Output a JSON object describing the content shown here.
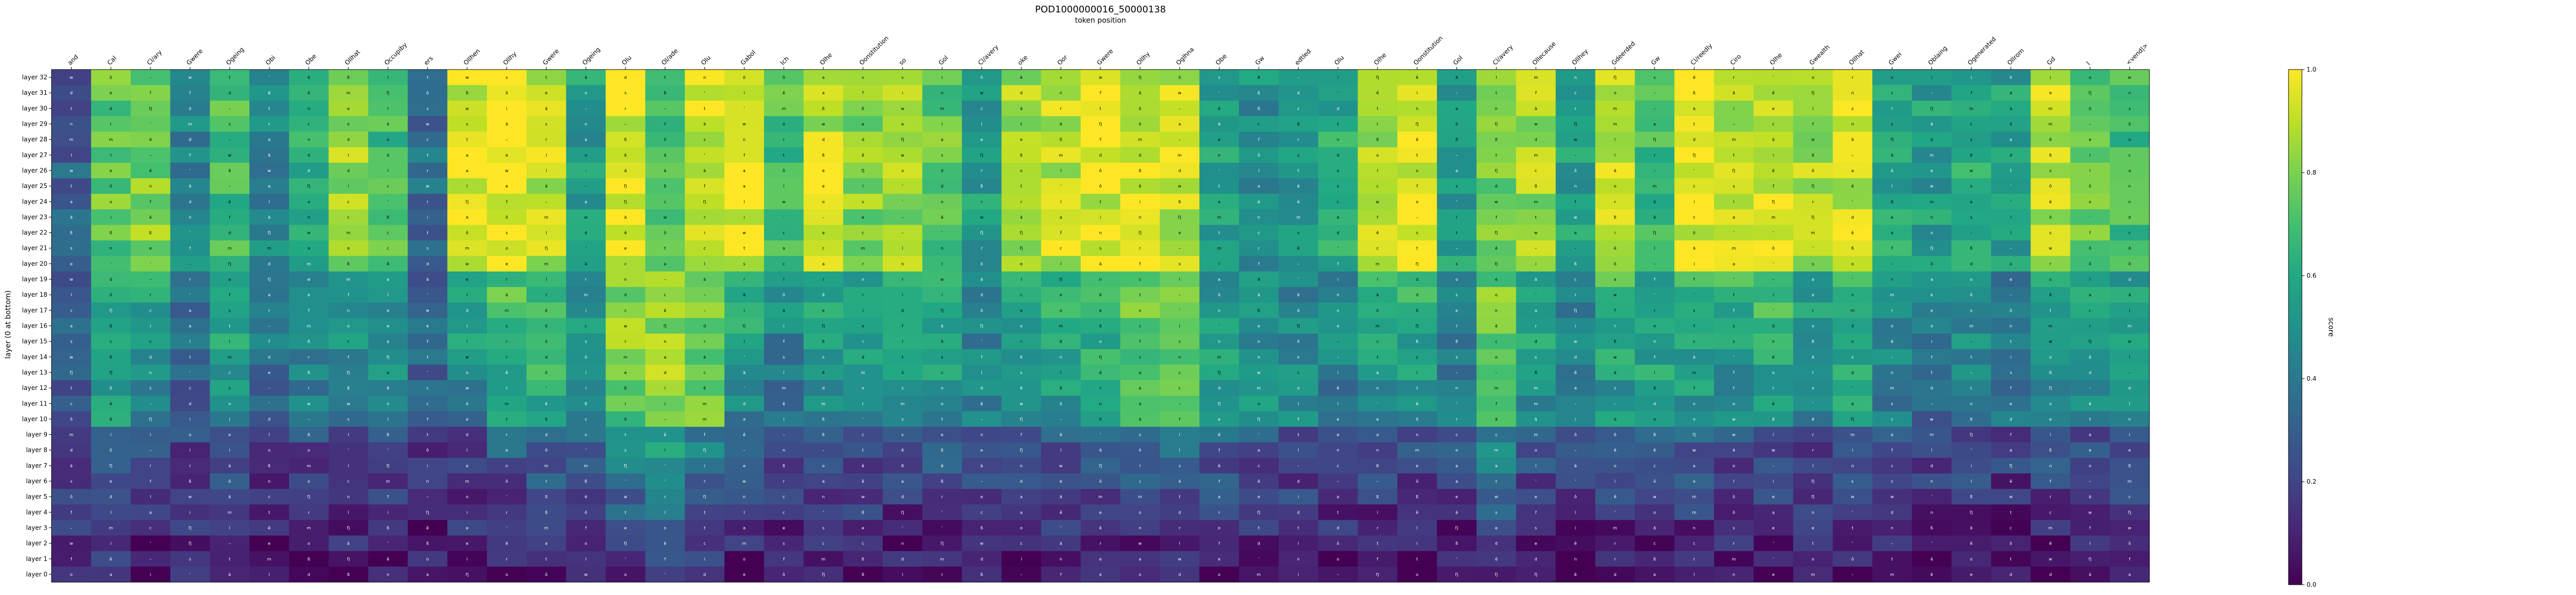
{
  "chart_data": {
    "type": "heatmap",
    "title": "POD1000000016_50000138",
    "subtitle": "token position",
    "ylabel": "layer (0 at bottom)",
    "colorbar_label": "score",
    "colorbar_ticks": [
      "0.0",
      "0.2",
      "0.4",
      "0.6",
      "0.8",
      "1.0"
    ],
    "colormap": "viridis",
    "zlim": [
      0,
      1
    ],
    "x_tokens": [
      "and",
      "Cal",
      "Cl/ary",
      "Gwere",
      "Ogeing",
      "Obi",
      "Obe",
      "Ollhat",
      "Occupiby",
      "ers",
      "Ollhen",
      "Ollhy",
      "Gwere",
      "Ogeing",
      "Olu",
      "Ol/ade",
      "Olu",
      "Gabol",
      "Ich",
      "Olhe",
      "Oonstitution",
      "so",
      "Gol",
      "Cl/avery",
      "oke",
      "Oor",
      "Gwere",
      "Ollhy",
      "Oglhna",
      "Obe",
      "Gw",
      "edtled",
      "Olu",
      "Olhe",
      "Oonstitution",
      "Gol",
      "Cl/avery",
      "Ollecause",
      "Ollhey",
      "Gdeerded",
      "Gw",
      "Cl/reedly",
      "Ciro",
      "Olhe",
      "Gwealth",
      "Ollhat",
      "Gwei",
      "Oblaing",
      "Ogenerated",
      "Ollrom",
      "Gd",
      "l",
      "<vend|>"
    ],
    "y_layers": [
      "layer 32",
      "layer 31",
      "layer 30",
      "layer 29",
      "layer 28",
      "layer 27",
      "layer 26",
      "layer 25",
      "layer 24",
      "layer 23",
      "layer 22",
      "layer 21",
      "layer 20",
      "layer 19",
      "layer 18",
      "layer 17",
      "layer 16",
      "layer 15",
      "layer 14",
      "layer 13",
      "layer 12",
      "layer 11",
      "layer 10",
      "layer 9",
      "layer 8",
      "layer 7",
      "layer 6",
      "layer 5",
      "layer 4",
      "layer 3",
      "layer 2",
      "layer 1",
      "layer 0"
    ],
    "cell_glyphs": [
      "e",
      "t",
      "w",
      "s",
      "a",
      "i",
      "n",
      "o",
      "ô",
      "ß",
      "ä",
      "ě",
      "r",
      "l",
      "f",
      "m",
      "c",
      "d",
      "'",
      "–",
      "Ŋ"
    ],
    "column_profiles": [
      {
        "high": 0.3,
        "mid": 0.25,
        "low": 0.1
      },
      {
        "high": 0.75,
        "mid": 0.55,
        "low": 0.1
      },
      {
        "high": 0.8,
        "mid": 0.4,
        "low": 0.05
      },
      {
        "high": 0.45,
        "mid": 0.3,
        "low": 0.08
      },
      {
        "high": 0.7,
        "mid": 0.5,
        "low": 0.05
      },
      {
        "high": 0.45,
        "mid": 0.35,
        "low": 0.05
      },
      {
        "high": 0.6,
        "mid": 0.4,
        "low": 0.05
      },
      {
        "high": 0.85,
        "mid": 0.4,
        "low": 0.05
      },
      {
        "high": 0.7,
        "mid": 0.45,
        "low": 0.05
      },
      {
        "high": 0.35,
        "mid": 0.3,
        "low": 0.05
      },
      {
        "high": 0.95,
        "mid": 0.4,
        "low": 0.05
      },
      {
        "high": 0.95,
        "mid": 0.55,
        "low": 0.05
      },
      {
        "high": 0.9,
        "mid": 0.6,
        "low": 0.05
      },
      {
        "high": 0.55,
        "mid": 0.5,
        "low": 0.05
      },
      {
        "high": 0.95,
        "mid": 0.75,
        "low": 0.15
      },
      {
        "high": 0.7,
        "mid": 0.85,
        "low": 0.25
      },
      {
        "high": 0.9,
        "mid": 0.75,
        "low": 0.1
      },
      {
        "high": 0.95,
        "mid": 0.45,
        "low": 0.05
      },
      {
        "high": 0.7,
        "mid": 0.35,
        "low": 0.05
      },
      {
        "high": 0.9,
        "mid": 0.45,
        "low": 0.1
      },
      {
        "high": 0.8,
        "mid": 0.45,
        "low": 0.05
      },
      {
        "high": 0.85,
        "mid": 0.45,
        "low": 0.05
      },
      {
        "high": 0.75,
        "mid": 0.5,
        "low": 0.05
      },
      {
        "high": 0.55,
        "mid": 0.4,
        "low": 0.05
      },
      {
        "high": 0.85,
        "mid": 0.45,
        "low": 0.05
      },
      {
        "high": 0.9,
        "mid": 0.5,
        "low": 0.05
      },
      {
        "high": 0.95,
        "mid": 0.55,
        "low": 0.05
      },
      {
        "high": 0.95,
        "mid": 0.65,
        "low": 0.05
      },
      {
        "high": 0.9,
        "mid": 0.7,
        "low": 0.05
      },
      {
        "high": 0.55,
        "mid": 0.55,
        "low": 0.05
      },
      {
        "high": 0.5,
        "mid": 0.5,
        "low": 0.05
      },
      {
        "high": 0.5,
        "mid": 0.45,
        "low": 0.05
      },
      {
        "high": 0.6,
        "mid": 0.4,
        "low": 0.05
      },
      {
        "high": 0.9,
        "mid": 0.45,
        "low": 0.05
      },
      {
        "high": 0.95,
        "mid": 0.45,
        "low": 0.05
      },
      {
        "high": 0.55,
        "mid": 0.4,
        "low": 0.05
      },
      {
        "high": 0.75,
        "mid": 0.8,
        "low": 0.1
      },
      {
        "high": 0.85,
        "mid": 0.45,
        "low": 0.05
      },
      {
        "high": 0.55,
        "mid": 0.4,
        "low": 0.05
      },
      {
        "high": 0.9,
        "mid": 0.5,
        "low": 0.05
      },
      {
        "high": 0.7,
        "mid": 0.55,
        "low": 0.05
      },
      {
        "high": 0.95,
        "mid": 0.5,
        "low": 0.05
      },
      {
        "high": 0.9,
        "mid": 0.45,
        "low": 0.05
      },
      {
        "high": 0.95,
        "mid": 0.5,
        "low": 0.05
      },
      {
        "high": 0.85,
        "mid": 0.4,
        "low": 0.05
      },
      {
        "high": 0.9,
        "mid": 0.55,
        "low": 0.05
      },
      {
        "high": 0.6,
        "mid": 0.4,
        "low": 0.05
      },
      {
        "high": 0.55,
        "mid": 0.35,
        "low": 0.05
      },
      {
        "high": 0.6,
        "mid": 0.45,
        "low": 0.05
      },
      {
        "high": 0.55,
        "mid": 0.35,
        "low": 0.05
      },
      {
        "high": 0.9,
        "mid": 0.45,
        "low": 0.05
      },
      {
        "high": 0.75,
        "mid": 0.45,
        "low": 0.05
      },
      {
        "high": 0.7,
        "mid": 0.45,
        "low": 0.05
      }
    ]
  }
}
